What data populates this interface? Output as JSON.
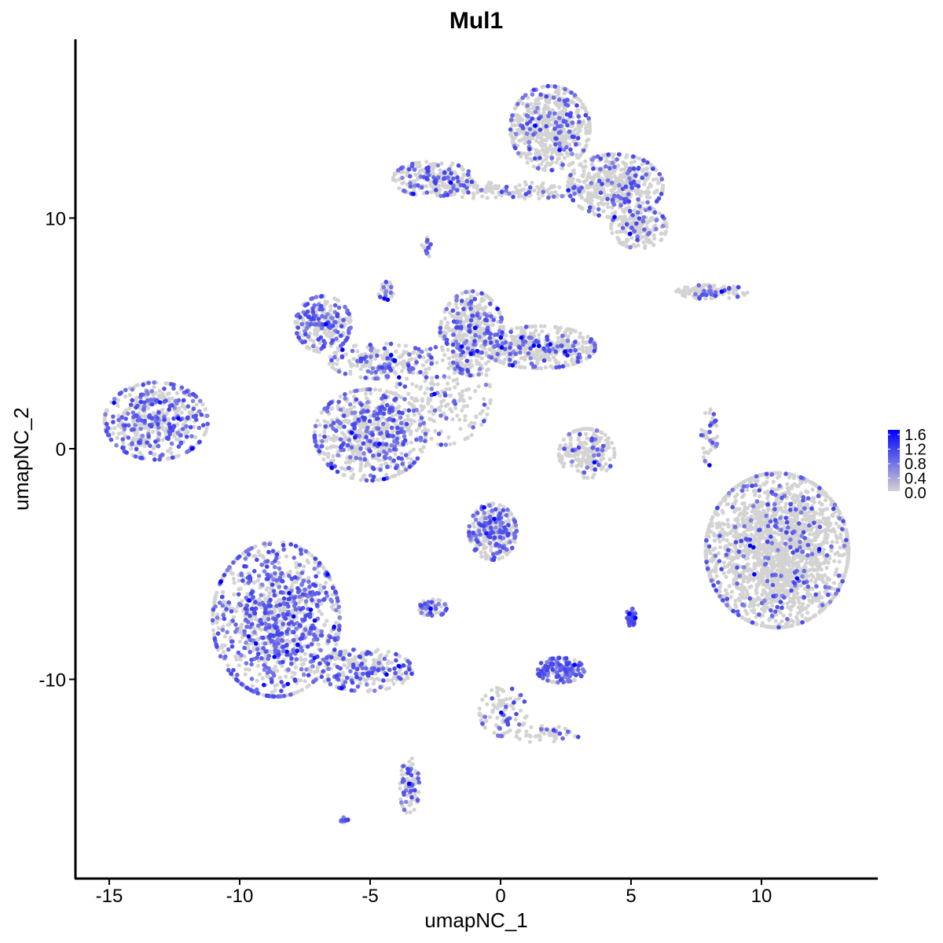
{
  "chart_data": {
    "type": "scatter",
    "title": "Mul1",
    "xlabel": "umapNC_1",
    "ylabel": "umapNC_2",
    "xlim": [
      -16.3,
      14.5
    ],
    "ylim": [
      -18.6,
      17.8
    ],
    "xticks": [
      -15,
      -10,
      -5,
      0,
      5,
      10
    ],
    "yticks": [
      -10,
      0,
      10
    ],
    "xtick_labels": [
      "-15",
      "-10",
      "-5",
      "0",
      "5",
      "10"
    ],
    "ytick_labels": [
      "-10",
      "0",
      "10"
    ],
    "grid": false,
    "legend": {
      "placement": "right",
      "type": "colorbar",
      "range": [
        0,
        1.6
      ],
      "tick_labels": [
        "1.6",
        "1.2",
        "0.8",
        "0.4",
        "0.0"
      ],
      "low_color": "#D3D3D3",
      "high_color": "#0000FF"
    },
    "clusters": [
      {
        "center": [
          -13.2,
          1.2
        ],
        "spread": [
          1.3,
          1.1
        ],
        "n": 500,
        "expressing_fraction": 0.4
      },
      {
        "center": [
          -8.6,
          -7.4
        ],
        "spread": [
          1.6,
          2.2
        ],
        "n": 1100,
        "expressing_fraction": 0.42
      },
      {
        "center": [
          -5.2,
          -9.6
        ],
        "spread": [
          1.2,
          0.6
        ],
        "n": 250,
        "expressing_fraction": 0.35
      },
      {
        "center": [
          -3.5,
          -14.6
        ],
        "spread": [
          0.25,
          0.8
        ],
        "n": 90,
        "expressing_fraction": 0.3
      },
      {
        "center": [
          -5.0,
          0.6
        ],
        "spread": [
          1.4,
          1.3
        ],
        "n": 700,
        "expressing_fraction": 0.3
      },
      {
        "center": [
          -6.8,
          5.4
        ],
        "spread": [
          0.7,
          0.8
        ],
        "n": 250,
        "expressing_fraction": 0.35
      },
      {
        "center": [
          -4.6,
          3.8
        ],
        "spread": [
          1.3,
          0.5
        ],
        "n": 200,
        "expressing_fraction": 0.3
      },
      {
        "center": [
          -1.1,
          5.0
        ],
        "spread": [
          0.8,
          1.2
        ],
        "n": 450,
        "expressing_fraction": 0.25
      },
      {
        "center": [
          1.5,
          4.4
        ],
        "spread": [
          1.4,
          0.6
        ],
        "n": 450,
        "expressing_fraction": 0.2
      },
      {
        "center": [
          -2.2,
          2.3
        ],
        "spread": [
          1.2,
          1.4
        ],
        "n": 200,
        "expressing_fraction": 0.2
      },
      {
        "center": [
          1.9,
          13.9
        ],
        "spread": [
          1.0,
          1.2
        ],
        "n": 600,
        "expressing_fraction": 0.15
      },
      {
        "center": [
          4.4,
          11.4
        ],
        "spread": [
          1.2,
          0.9
        ],
        "n": 500,
        "expressing_fraction": 0.15
      },
      {
        "center": [
          5.3,
          9.6
        ],
        "spread": [
          0.7,
          0.6
        ],
        "n": 200,
        "expressing_fraction": 0.15
      },
      {
        "center": [
          -2.6,
          11.7
        ],
        "spread": [
          1.0,
          0.5
        ],
        "n": 220,
        "expressing_fraction": 0.3
      },
      {
        "center": [
          0.3,
          11.2
        ],
        "spread": [
          1.8,
          0.25
        ],
        "n": 150,
        "expressing_fraction": 0.15
      },
      {
        "center": [
          10.6,
          -4.4
        ],
        "spread": [
          1.8,
          2.2
        ],
        "n": 2200,
        "expressing_fraction": 0.09
      },
      {
        "center": [
          3.3,
          -0.2
        ],
        "spread": [
          0.7,
          0.7
        ],
        "n": 220,
        "expressing_fraction": 0.12
      },
      {
        "center": [
          -0.3,
          -3.6
        ],
        "spread": [
          0.6,
          0.8
        ],
        "n": 300,
        "expressing_fraction": 0.35
      },
      {
        "center": [
          -2.6,
          -6.9
        ],
        "spread": [
          0.35,
          0.25
        ],
        "n": 60,
        "expressing_fraction": 0.4
      },
      {
        "center": [
          2.3,
          -9.6
        ],
        "spread": [
          0.6,
          0.35
        ],
        "n": 160,
        "expressing_fraction": 0.5
      },
      {
        "center": [
          0.1,
          -11.4
        ],
        "spread": [
          0.6,
          0.7
        ],
        "n": 90,
        "expressing_fraction": 0.2
      },
      {
        "center": [
          1.8,
          -12.4
        ],
        "spread": [
          0.8,
          0.25
        ],
        "n": 50,
        "expressing_fraction": 0.2
      },
      {
        "center": [
          8.1,
          6.8
        ],
        "spread": [
          0.9,
          0.2
        ],
        "n": 130,
        "expressing_fraction": 0.2
      },
      {
        "center": [
          5.0,
          -7.3
        ],
        "spread": [
          0.12,
          0.25
        ],
        "n": 40,
        "expressing_fraction": 0.8
      },
      {
        "center": [
          -6.0,
          -16.1
        ],
        "spread": [
          0.1,
          0.08
        ],
        "n": 12,
        "expressing_fraction": 0.8
      },
      {
        "center": [
          8.0,
          0.5
        ],
        "spread": [
          0.2,
          0.8
        ],
        "n": 50,
        "expressing_fraction": 0.3
      },
      {
        "center": [
          -4.4,
          6.9
        ],
        "spread": [
          0.2,
          0.3
        ],
        "n": 30,
        "expressing_fraction": 0.4
      },
      {
        "center": [
          -2.8,
          8.7
        ],
        "spread": [
          0.15,
          0.3
        ],
        "n": 15,
        "expressing_fraction": 0.4
      }
    ]
  }
}
